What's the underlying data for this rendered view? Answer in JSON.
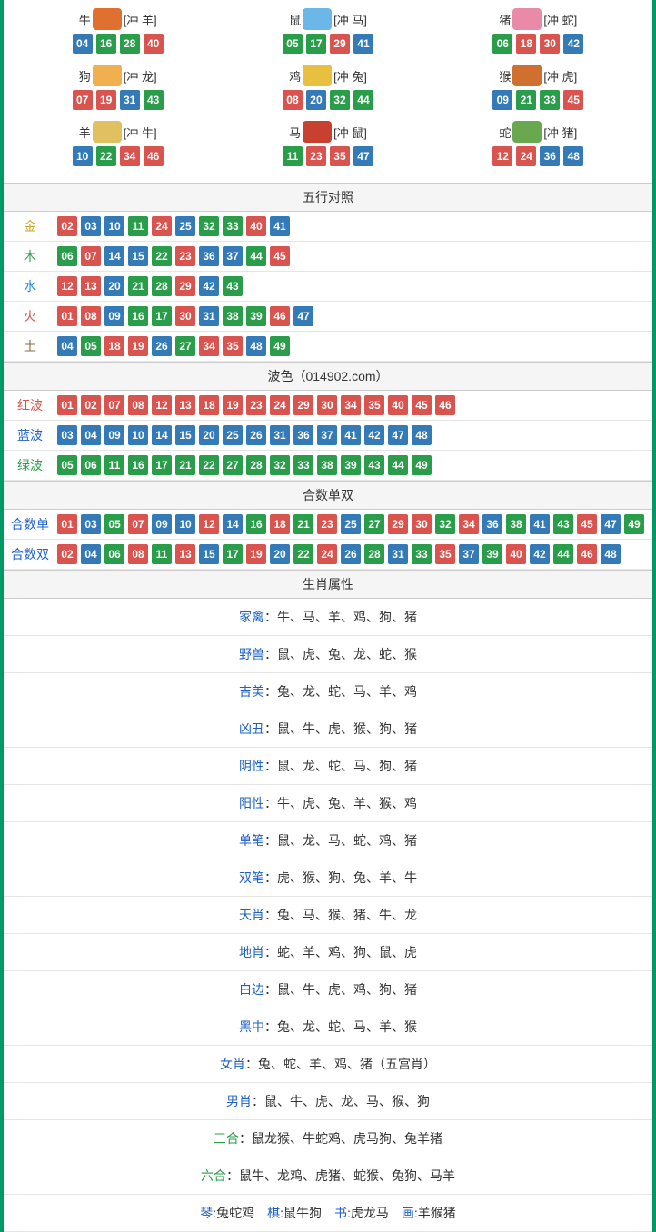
{
  "colors": {
    "red": "#d9534f",
    "blue": "#337ab7",
    "green": "#2a9d4a",
    "border": "#009966"
  },
  "zodiac_icons_bg": {
    "牛": "#e07030",
    "鼠": "#6bb7e8",
    "猪": "#e88aa8",
    "狗": "#f0b050",
    "鸡": "#e8c040",
    "猴": "#d07030",
    "羊": "#e0c060",
    "马": "#c84030",
    "蛇": "#6aa84f"
  },
  "zodiac": [
    {
      "name": "牛",
      "conflict": "冲 羊",
      "nums": [
        "04",
        "16",
        "28",
        "40"
      ]
    },
    {
      "name": "鼠",
      "conflict": "冲 马",
      "nums": [
        "05",
        "17",
        "29",
        "41"
      ]
    },
    {
      "name": "猪",
      "conflict": "冲 蛇",
      "nums": [
        "06",
        "18",
        "30",
        "42"
      ]
    },
    {
      "name": "狗",
      "conflict": "冲 龙",
      "nums": [
        "07",
        "19",
        "31",
        "43"
      ]
    },
    {
      "name": "鸡",
      "conflict": "冲 兔",
      "nums": [
        "08",
        "20",
        "32",
        "44"
      ]
    },
    {
      "name": "猴",
      "conflict": "冲 虎",
      "nums": [
        "09",
        "21",
        "33",
        "45"
      ]
    },
    {
      "name": "羊",
      "conflict": "冲 牛",
      "nums": [
        "10",
        "22",
        "34",
        "46"
      ]
    },
    {
      "name": "马",
      "conflict": "冲 鼠",
      "nums": [
        "11",
        "23",
        "35",
        "47"
      ]
    },
    {
      "name": "蛇",
      "conflict": "冲 猪",
      "nums": [
        "12",
        "24",
        "36",
        "48"
      ]
    }
  ],
  "ball_color_map": {
    "red": [
      "01",
      "02",
      "07",
      "08",
      "12",
      "13",
      "18",
      "19",
      "23",
      "24",
      "29",
      "30",
      "34",
      "35",
      "40",
      "45",
      "46"
    ],
    "blue": [
      "03",
      "04",
      "09",
      "10",
      "14",
      "15",
      "20",
      "25",
      "26",
      "31",
      "36",
      "37",
      "41",
      "42",
      "47",
      "48"
    ],
    "green": [
      "05",
      "06",
      "11",
      "16",
      "17",
      "21",
      "22",
      "27",
      "28",
      "32",
      "33",
      "38",
      "39",
      "43",
      "44",
      "49"
    ]
  },
  "sections": {
    "wuxing": {
      "title": "五行对照",
      "rows": [
        {
          "label": "金",
          "labelClass": "lbl-gold",
          "nums": [
            "02",
            "03",
            "10",
            "11",
            "24",
            "25",
            "32",
            "33",
            "40",
            "41"
          ]
        },
        {
          "label": "木",
          "labelClass": "lbl-wood",
          "nums": [
            "06",
            "07",
            "14",
            "15",
            "22",
            "23",
            "36",
            "37",
            "44",
            "45"
          ]
        },
        {
          "label": "水",
          "labelClass": "lbl-water",
          "nums": [
            "12",
            "13",
            "20",
            "21",
            "28",
            "29",
            "42",
            "43"
          ]
        },
        {
          "label": "火",
          "labelClass": "lbl-fire",
          "nums": [
            "01",
            "08",
            "09",
            "16",
            "17",
            "30",
            "31",
            "38",
            "39",
            "46",
            "47"
          ]
        },
        {
          "label": "土",
          "labelClass": "lbl-earth",
          "nums": [
            "04",
            "05",
            "18",
            "19",
            "26",
            "27",
            "34",
            "35",
            "48",
            "49"
          ]
        }
      ]
    },
    "bose": {
      "title": "波色（014902.com）",
      "rows": [
        {
          "label": "红波",
          "labelClass": "lbl-red",
          "nums": [
            "01",
            "02",
            "07",
            "08",
            "12",
            "13",
            "18",
            "19",
            "23",
            "24",
            "29",
            "30",
            "34",
            "35",
            "40",
            "45",
            "46"
          ]
        },
        {
          "label": "蓝波",
          "labelClass": "lbl-blue",
          "nums": [
            "03",
            "04",
            "09",
            "10",
            "14",
            "15",
            "20",
            "25",
            "26",
            "31",
            "36",
            "37",
            "41",
            "42",
            "47",
            "48"
          ]
        },
        {
          "label": "绿波",
          "labelClass": "lbl-green",
          "nums": [
            "05",
            "06",
            "11",
            "16",
            "17",
            "21",
            "22",
            "27",
            "28",
            "32",
            "33",
            "38",
            "39",
            "43",
            "44",
            "49"
          ]
        }
      ]
    },
    "heshu": {
      "title": "合数单双",
      "rows": [
        {
          "label": "合数单",
          "labelClass": "lbl-blue",
          "nums": [
            "01",
            "03",
            "05",
            "07",
            "09",
            "10",
            "12",
            "14",
            "16",
            "18",
            "21",
            "23",
            "25",
            "27",
            "29",
            "30",
            "32",
            "34",
            "36",
            "38",
            "41",
            "43",
            "45",
            "47",
            "49"
          ]
        },
        {
          "label": "合数双",
          "labelClass": "lbl-blue",
          "nums": [
            "02",
            "04",
            "06",
            "08",
            "11",
            "13",
            "15",
            "17",
            "19",
            "20",
            "22",
            "24",
            "26",
            "28",
            "31",
            "33",
            "35",
            "37",
            "39",
            "40",
            "42",
            "44",
            "46",
            "48"
          ]
        }
      ]
    },
    "shuxing": {
      "title": "生肖属性",
      "rows": [
        {
          "label": "家禽",
          "cls": "attr-label",
          "text": "牛、马、羊、鸡、狗、猪"
        },
        {
          "label": "野兽",
          "cls": "attr-label",
          "text": "鼠、虎、兔、龙、蛇、猴"
        },
        {
          "label": "吉美",
          "cls": "attr-label",
          "text": "兔、龙、蛇、马、羊、鸡"
        },
        {
          "label": "凶丑",
          "cls": "attr-label",
          "text": "鼠、牛、虎、猴、狗、猪"
        },
        {
          "label": "阴性",
          "cls": "attr-label",
          "text": "鼠、龙、蛇、马、狗、猪"
        },
        {
          "label": "阳性",
          "cls": "attr-label",
          "text": "牛、虎、兔、羊、猴、鸡"
        },
        {
          "label": "单笔",
          "cls": "attr-label",
          "text": "鼠、龙、马、蛇、鸡、猪"
        },
        {
          "label": "双笔",
          "cls": "attr-label",
          "text": "虎、猴、狗、兔、羊、牛"
        },
        {
          "label": "天肖",
          "cls": "attr-label",
          "text": "兔、马、猴、猪、牛、龙"
        },
        {
          "label": "地肖",
          "cls": "attr-label",
          "text": "蛇、羊、鸡、狗、鼠、虎"
        },
        {
          "label": "白边",
          "cls": "attr-label",
          "text": "鼠、牛、虎、鸡、狗、猪"
        },
        {
          "label": "黑中",
          "cls": "attr-label",
          "text": "兔、龙、蛇、马、羊、猴"
        },
        {
          "label": "女肖",
          "cls": "attr-label",
          "text": "兔、蛇、羊、鸡、猪（五宫肖）"
        },
        {
          "label": "男肖",
          "cls": "attr-label",
          "text": "鼠、牛、虎、龙、马、猴、狗"
        },
        {
          "label": "三合",
          "cls": "attr-label-green",
          "text": "鼠龙猴、牛蛇鸡、虎马狗、兔羊猪"
        },
        {
          "label": "六合",
          "cls": "attr-label-green",
          "text": "鼠牛、龙鸡、虎猪、蛇猴、兔狗、马羊"
        }
      ],
      "lastline": [
        {
          "label": "琴",
          "text": "兔蛇鸡"
        },
        {
          "label": "棋",
          "text": "鼠牛狗"
        },
        {
          "label": "书",
          "text": "虎龙马"
        },
        {
          "label": "画",
          "text": "羊猴猪"
        }
      ]
    }
  }
}
